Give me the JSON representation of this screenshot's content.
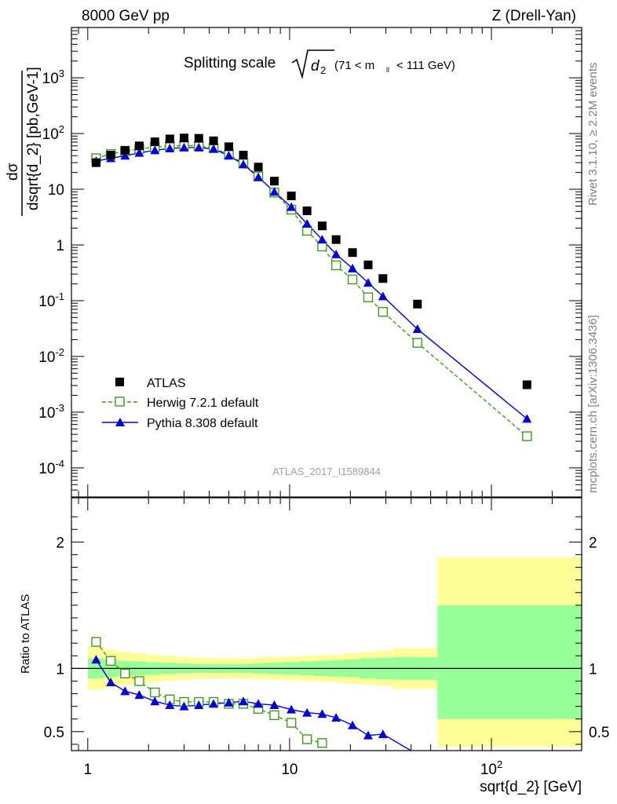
{
  "header": {
    "left": "8000 GeV pp",
    "right": "Z (Drell-Yan)"
  },
  "title": {
    "main": "Splitting scale",
    "sub": "2",
    "range": "(71 < m",
    "range_sub": "ll",
    "range_end": "< 111 GeV)"
  },
  "side_labels": {
    "rivet": "Rivet 3.1.10, ≥ 2.2M events",
    "mcplots": "mcplots.cern.ch [arXiv:1306.3436]"
  },
  "analysis_ref": "ATLAS_2017_I1589844",
  "axes": {
    "ylabel_top": "dσ",
    "ylabel_bottom": "dsqrt{d_2} [pb,GeV-1]",
    "ylabel_ratio": "Ratio to ATLAS",
    "xlabel": "sqrt{d_2} [GeV]"
  },
  "legend": {
    "atlas": "ATLAS",
    "herwig": "Herwig 7.2.1 default",
    "pythia": "Pythia 8.308 default"
  },
  "colors": {
    "atlas": "#000000",
    "herwig": "#3e9a1c",
    "pythia": "#0000dd",
    "band_inner": "#99ff99",
    "band_outer": "#ffff99"
  },
  "chart_data": [
    {
      "type": "scatter",
      "scale": "log-log",
      "xlabel": "sqrt{d_2} [GeV]",
      "ylabel": "dσ/dsqrt{d_2} [pb,GeV^-1]",
      "xlim": [
        0.83,
        280
      ],
      "ylim": [
        3e-05,
        8000
      ],
      "x": [
        1.1,
        1.3,
        1.53,
        1.8,
        2.15,
        2.55,
        3.0,
        3.55,
        4.2,
        5.0,
        5.9,
        7.0,
        8.4,
        10.2,
        12.2,
        14.5,
        17.0,
        20.5,
        24.5,
        29.0,
        43.0,
        150.0
      ],
      "series": [
        {
          "name": "ATLAS",
          "marker": "square",
          "values": [
            30,
            41,
            50,
            60,
            71,
            80,
            83,
            82,
            74,
            58,
            41,
            25,
            14,
            7.6,
            4.1,
            2.2,
            1.25,
            0.73,
            0.44,
            0.25,
            0.087,
            0.0031
          ]
        },
        {
          "name": "Herwig 7.2.1 default",
          "marker": "open-square",
          "line": "dashed",
          "values": [
            36,
            43,
            48,
            53,
            57,
            60,
            61,
            60,
            55,
            42,
            29,
            17,
            8.7,
            4.3,
            1.8,
            0.94,
            0.43,
            0.24,
            0.115,
            0.063,
            0.0175,
            0.00037
          ]
        },
        {
          "name": "Pythia 8.308 default",
          "marker": "triangle",
          "values": [
            32,
            36,
            40,
            45,
            50,
            54,
            56,
            56,
            53,
            40,
            28,
            16.5,
            9.0,
            4.8,
            2.4,
            1.25,
            0.68,
            0.38,
            0.21,
            0.12,
            0.031,
            0.00076
          ]
        }
      ]
    },
    {
      "type": "line",
      "scale": "log-x",
      "xlabel": "sqrt{d_2} [GeV]",
      "ylabel": "Ratio to ATLAS",
      "xlim": [
        0.83,
        280
      ],
      "ylim": [
        0.35,
        2.35
      ],
      "yticks": [
        0.5,
        1,
        2
      ],
      "bands": {
        "edges": [
          1.0,
          1.2,
          1.4,
          1.65,
          1.95,
          2.3,
          2.75,
          3.25,
          3.85,
          4.6,
          5.4,
          6.45,
          7.6,
          9.2,
          11.2,
          13.3,
          15.7,
          18.6,
          22.3,
          26.7,
          32.3,
          54.0,
          280.0
        ],
        "inner_lo": [
          0.92,
          0.93,
          0.94,
          0.945,
          0.95,
          0.955,
          0.96,
          0.965,
          0.965,
          0.965,
          0.965,
          0.96,
          0.955,
          0.95,
          0.945,
          0.94,
          0.935,
          0.93,
          0.92,
          0.915,
          0.91,
          0.6
        ],
        "inner_hi": [
          1.08,
          1.07,
          1.06,
          1.055,
          1.05,
          1.045,
          1.04,
          1.035,
          1.035,
          1.035,
          1.035,
          1.04,
          1.045,
          1.05,
          1.055,
          1.06,
          1.065,
          1.07,
          1.08,
          1.085,
          1.09,
          1.5
        ],
        "outer_lo": [
          0.83,
          0.85,
          0.87,
          0.88,
          0.89,
          0.9,
          0.91,
          0.915,
          0.92,
          0.92,
          0.92,
          0.915,
          0.91,
          0.905,
          0.9,
          0.895,
          0.89,
          0.88,
          0.87,
          0.86,
          0.84,
          0.38
        ],
        "outer_hi": [
          1.17,
          1.15,
          1.13,
          1.12,
          1.11,
          1.1,
          1.09,
          1.085,
          1.08,
          1.08,
          1.08,
          1.085,
          1.09,
          1.095,
          1.1,
          1.105,
          1.11,
          1.12,
          1.13,
          1.14,
          1.16,
          1.88
        ]
      },
      "series": [
        {
          "name": "Herwig 7.2.1 default",
          "x": [
            1.1,
            1.3,
            1.53,
            1.8,
            2.15,
            2.55,
            3.0,
            3.55,
            4.2,
            5.0,
            5.9,
            7.0,
            8.4,
            10.2,
            12.2,
            14.5
          ],
          "values": [
            1.21,
            1.06,
            0.96,
            0.9,
            0.81,
            0.755,
            0.735,
            0.735,
            0.735,
            0.72,
            0.72,
            0.68,
            0.63,
            0.57,
            0.44,
            0.41
          ]
        },
        {
          "name": "Pythia 8.308 default",
          "x": [
            1.1,
            1.3,
            1.53,
            1.8,
            2.15,
            2.55,
            3.0,
            3.55,
            4.2,
            5.0,
            5.9,
            7.0,
            8.4,
            10.2,
            12.2,
            14.5,
            17.0,
            20.5,
            24.5,
            29.0,
            43.0
          ],
          "values": [
            1.07,
            0.89,
            0.82,
            0.79,
            0.74,
            0.71,
            0.7,
            0.71,
            0.72,
            0.73,
            0.74,
            0.72,
            0.71,
            0.675,
            0.65,
            0.64,
            0.61,
            0.55,
            0.47,
            0.48,
            0.32
          ]
        }
      ]
    }
  ]
}
